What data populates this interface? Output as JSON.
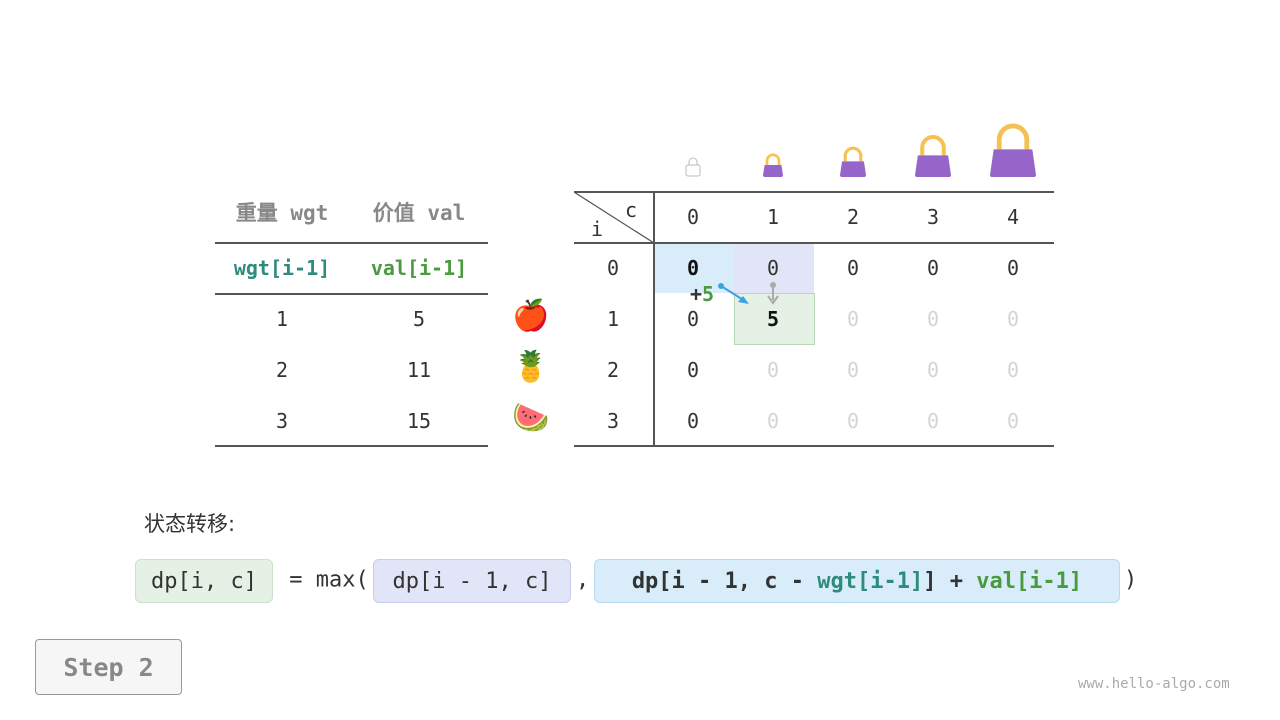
{
  "items_table": {
    "headers": [
      "重量 wgt",
      "价值 val"
    ],
    "subheaders": [
      "wgt[i-1]",
      "val[i-1]"
    ],
    "rows": [
      {
        "wgt": "1",
        "val": "5",
        "icon": "apple-icon",
        "emoji": "🍎"
      },
      {
        "wgt": "2",
        "val": "11",
        "icon": "pineapple-icon",
        "emoji": "🍍"
      },
      {
        "wgt": "3",
        "val": "15",
        "icon": "watermelon-icon",
        "emoji": "🍉"
      }
    ]
  },
  "dp_table": {
    "corner_col": "c",
    "corner_row": "i",
    "col_headers": [
      "0",
      "1",
      "2",
      "3",
      "4"
    ],
    "row_headers": [
      "0",
      "1",
      "2",
      "3"
    ],
    "cells": [
      [
        "0",
        "0",
        "0",
        "0",
        "0"
      ],
      [
        "0",
        "5",
        "0",
        "0",
        "0"
      ],
      [
        "0",
        "0",
        "0",
        "0",
        "0"
      ],
      [
        "0",
        "0",
        "0",
        "0",
        "0"
      ]
    ],
    "annotation": {
      "plus": "+",
      "value": "5"
    }
  },
  "colors": {
    "blue_cell": "#d9ecf9",
    "lavender_cell": "#e2e5f7",
    "green_cell": "#e4f1e4",
    "bag": "#9565c9",
    "handle": "#f5c153",
    "teal": "#2e8b7e",
    "green": "#4a9a3f"
  },
  "transition": {
    "label": "状态转移:",
    "lhs": "dp[i, c]",
    "eq": " = max(",
    "opt1": "dp[i - 1, c]",
    "comma": ",",
    "opt2_a": "dp[i - 1, c - ",
    "opt2_wgt": "wgt[i-1]",
    "opt2_b": "] + ",
    "opt2_val": "val[i-1]",
    "close": ")"
  },
  "step_button": "Step 2",
  "watermark": "www.hello-algo.com"
}
